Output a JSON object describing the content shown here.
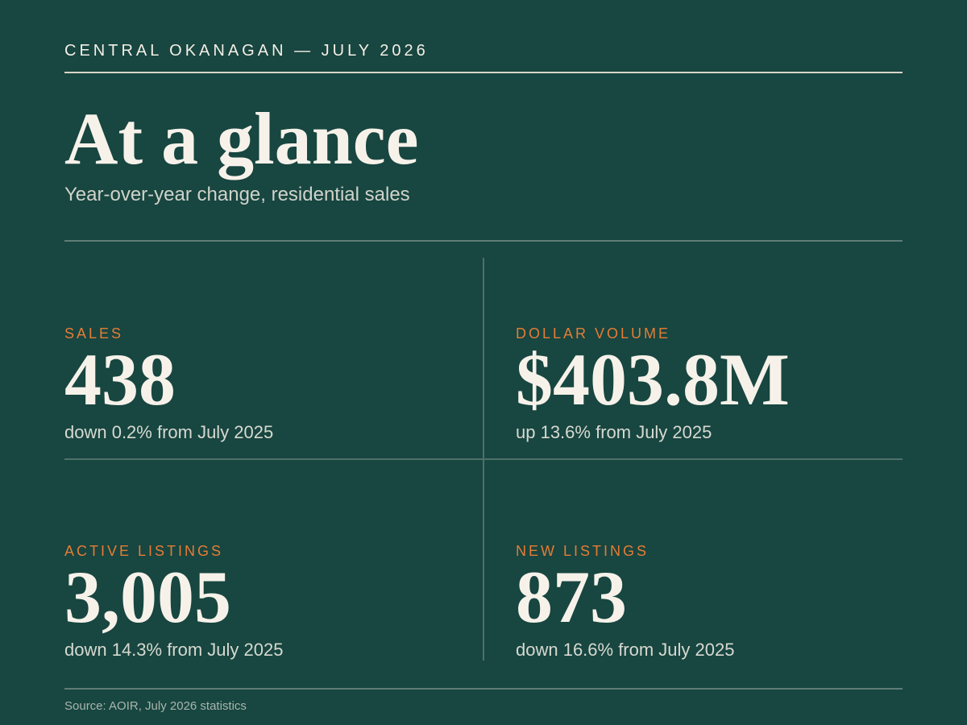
{
  "header": {
    "eyebrow": "CENTRAL OKANAGAN — JULY 2026",
    "title": "At a glance",
    "subtitle": "Year-over-year change, residential sales"
  },
  "colors": {
    "background": "#184640",
    "label_accent": "#e57c36",
    "text_primary": "#f6f2ea"
  },
  "stats": [
    {
      "label": "SALES",
      "value": "438",
      "change": "down 0.2% from July 2025"
    },
    {
      "label": "DOLLAR VOLUME",
      "value": "$403.8M",
      "change": "up 13.6% from July 2025"
    },
    {
      "label": "ACTIVE LISTINGS",
      "value": "3,005",
      "change": "down 14.3% from July 2025"
    },
    {
      "label": "NEW LISTINGS",
      "value": "873",
      "change": "down 16.6% from July 2025"
    }
  ],
  "footer": {
    "source": "Source: AOIR, July 2026 statistics"
  }
}
